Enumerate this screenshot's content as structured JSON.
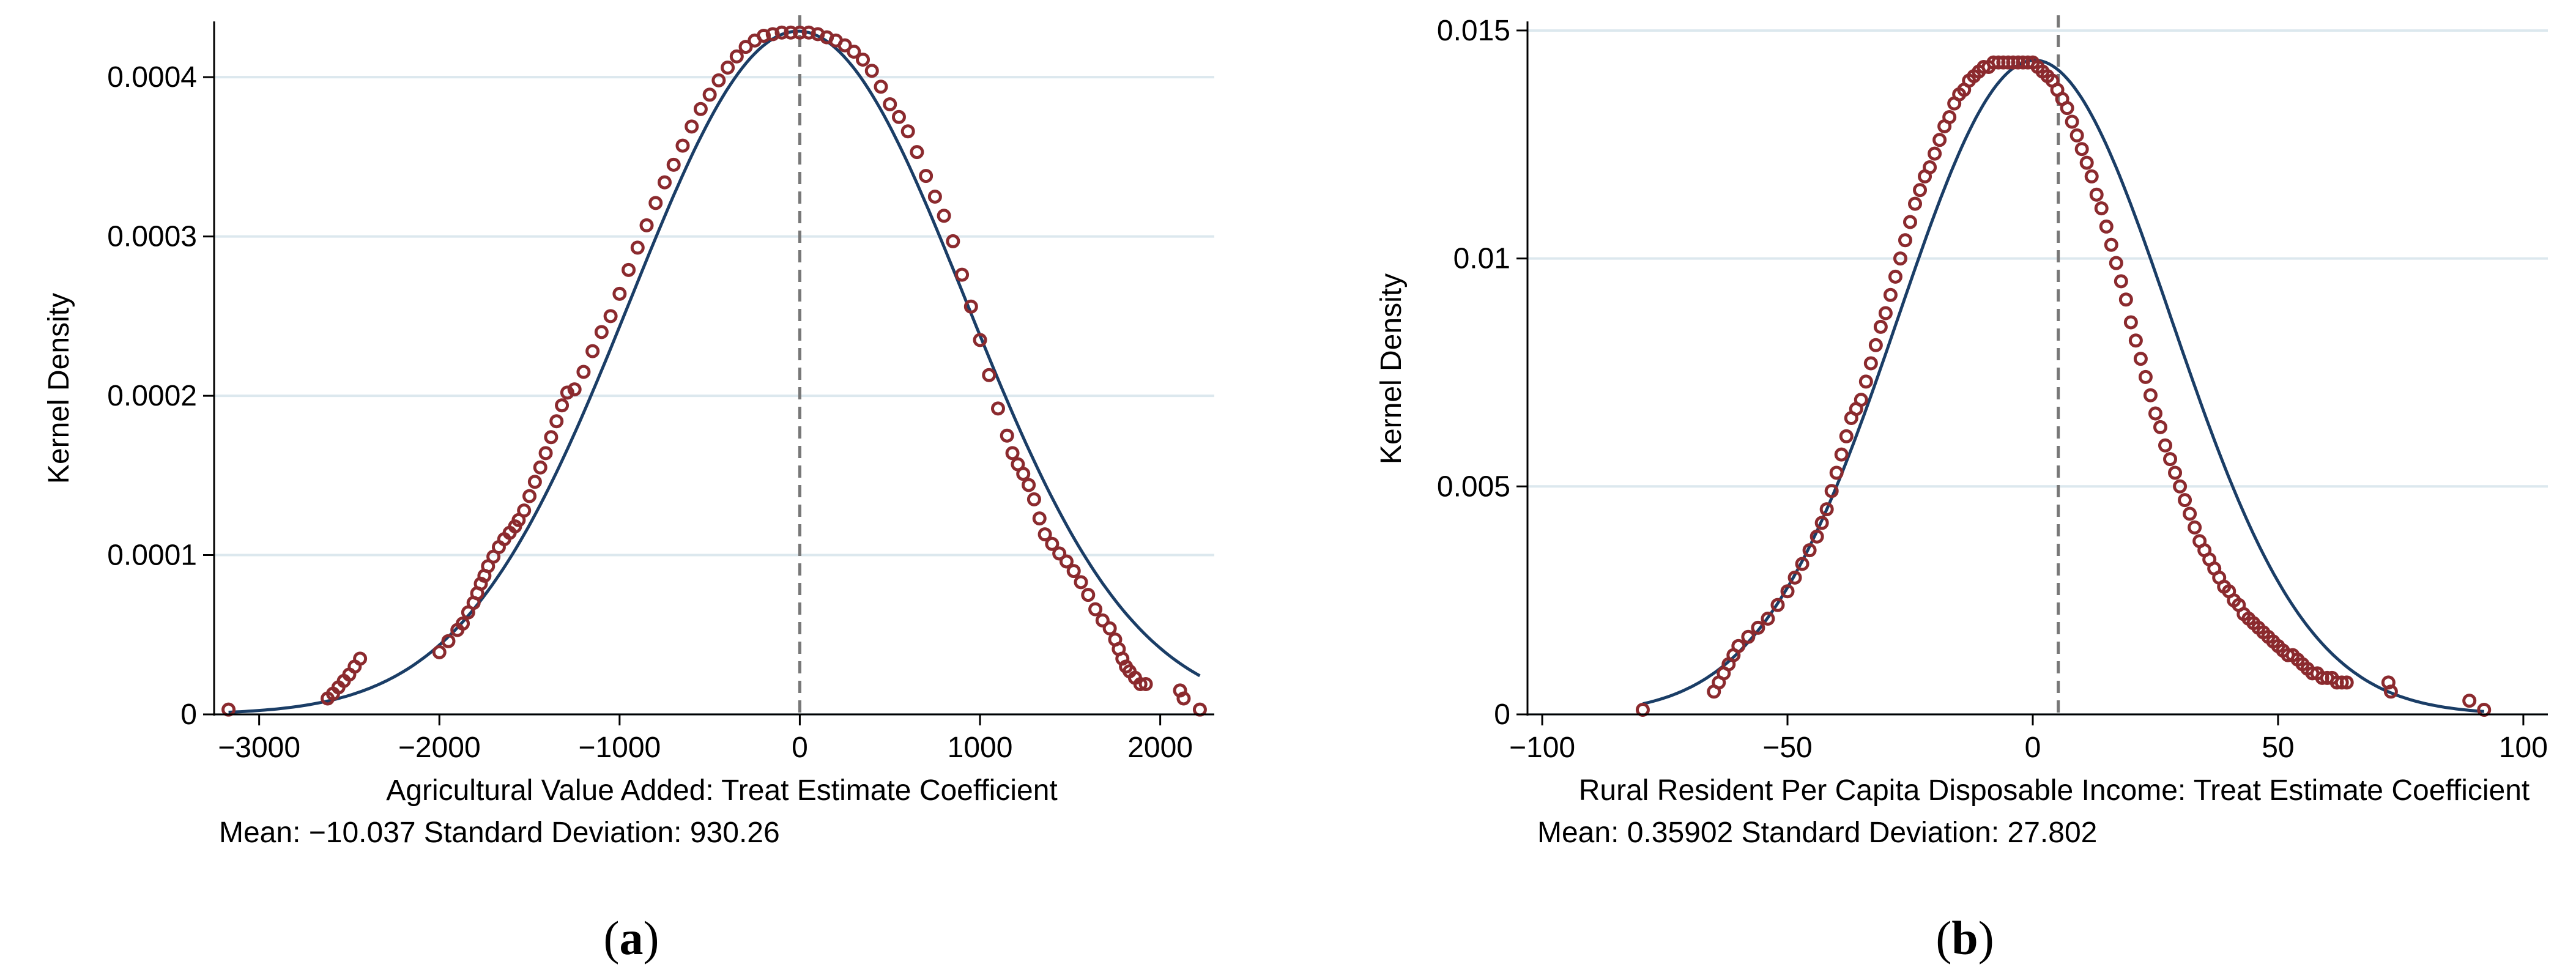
{
  "colors": {
    "kernel": "#8b2a2e",
    "normal": "#1a3d66",
    "grid": "#dce8ee",
    "mean_line": "#777777",
    "axis": "#000000"
  },
  "chart_data": [
    {
      "id": "a",
      "type": "scatter",
      "panel_label": {
        "open": "(",
        "letter": "a",
        "close": ")"
      },
      "xlabel": "Agricultural Value Added: Treat Estimate Coefficient",
      "ylabel": "Kernel Density",
      "stats_text": "Mean: −10.037 Standard Deviation: 930.26",
      "mean": -10.037,
      "sd": 930.26,
      "xlim": [
        -3250,
        2300
      ],
      "ylim": [
        0,
        0.000435
      ],
      "xticks": [
        -3000,
        -2000,
        -1000,
        0,
        1000,
        2000
      ],
      "xtick_labels": [
        "−3000",
        "−2000",
        "−1000",
        "0",
        "1000",
        "2000"
      ],
      "yticks": [
        0,
        0.0001,
        0.0002,
        0.0003,
        0.0004
      ],
      "ytick_labels": [
        "0",
        "0.0001",
        "0.0002",
        "0.0003",
        "0.0004"
      ],
      "vline_x": 0,
      "grid": true,
      "series": [
        {
          "name": "Kernel density",
          "style": "hollow-markers",
          "x": [
            -3170,
            -2620,
            -2590,
            -2560,
            -2530,
            -2500,
            -2470,
            -2440,
            -2000,
            -1950,
            -1900,
            -1870,
            -1840,
            -1810,
            -1790,
            -1770,
            -1750,
            -1730,
            -1700,
            -1670,
            -1640,
            -1610,
            -1580,
            -1560,
            -1530,
            -1500,
            -1470,
            -1440,
            -1410,
            -1380,
            -1350,
            -1320,
            -1290,
            -1250,
            -1200,
            -1150,
            -1100,
            -1050,
            -1000,
            -950,
            -900,
            -850,
            -800,
            -750,
            -700,
            -650,
            -600,
            -550,
            -500,
            -450,
            -400,
            -350,
            -300,
            -250,
            -200,
            -150,
            -100,
            -50,
            0,
            50,
            100,
            150,
            200,
            250,
            300,
            350,
            400,
            450,
            500,
            550,
            600,
            650,
            700,
            750,
            800,
            850,
            900,
            950,
            1000,
            1050,
            1100,
            1150,
            1180,
            1210,
            1240,
            1270,
            1300,
            1330,
            1360,
            1400,
            1440,
            1480,
            1520,
            1560,
            1600,
            1640,
            1680,
            1720,
            1750,
            1770,
            1790,
            1810,
            1830,
            1860,
            1890,
            1920,
            2110,
            2130,
            2220
          ],
          "y": [
            3e-06,
            1e-05,
            1.3e-05,
            1.7e-05,
            2.1e-05,
            2.5e-05,
            3e-05,
            3.5e-05,
            3.9e-05,
            4.6e-05,
            5.3e-05,
            5.7e-05,
            6.4e-05,
            7e-05,
            7.6e-05,
            8.2e-05,
            8.7e-05,
            9.3e-05,
            9.9e-05,
            0.000105,
            0.00011,
            0.000114,
            0.000118,
            0.000122,
            0.000128,
            0.000137,
            0.000146,
            0.000155,
            0.000164,
            0.000174,
            0.000184,
            0.000194,
            0.000202,
            0.000204,
            0.000215,
            0.000228,
            0.00024,
            0.00025,
            0.000264,
            0.000279,
            0.000293,
            0.000307,
            0.000321,
            0.000334,
            0.000345,
            0.000357,
            0.000369,
            0.00038,
            0.000389,
            0.000398,
            0.000406,
            0.000413,
            0.000419,
            0.000423,
            0.000426,
            0.000427,
            0.000428,
            0.000428,
            0.000428,
            0.000428,
            0.000427,
            0.000425,
            0.000423,
            0.00042,
            0.000416,
            0.000411,
            0.000404,
            0.000394,
            0.000383,
            0.000375,
            0.000366,
            0.000353,
            0.000338,
            0.000325,
            0.000313,
            0.000297,
            0.000276,
            0.000256,
            0.000235,
            0.000213,
            0.000192,
            0.000175,
            0.000164,
            0.000157,
            0.000151,
            0.000144,
            0.000135,
            0.000123,
            0.000113,
            0.000107,
            0.000101,
            9.6e-05,
            9e-05,
            8.3e-05,
            7.5e-05,
            6.6e-05,
            5.9e-05,
            5.4e-05,
            4.7e-05,
            4.1e-05,
            3.5e-05,
            3e-05,
            2.7e-05,
            2.3e-05,
            1.9e-05,
            1.9e-05,
            1.5e-05,
            1e-05,
            3e-06
          ]
        },
        {
          "name": "Normal density",
          "style": "line"
        }
      ]
    },
    {
      "id": "b",
      "type": "scatter",
      "panel_label": {
        "open": "(",
        "letter": "b",
        "close": ")"
      },
      "xlabel": "Rural Resident Per Capita Disposable Income: Treat Estimate Coefficient",
      "ylabel": "Kernel Density",
      "stats_text": "Mean: 0.35902 Standard Deviation: 27.802",
      "mean": 0.35902,
      "sd": 27.802,
      "xlim": [
        -103,
        105
      ],
      "ylim": [
        0,
        0.0152
      ],
      "xticks": [
        -100,
        -50,
        0,
        50,
        100
      ],
      "xtick_labels": [
        "−100",
        "−50",
        "0",
        "50",
        "100"
      ],
      "yticks": [
        0,
        0.005,
        0.01,
        0.015
      ],
      "ytick_labels": [
        "0",
        "0.005",
        "0.01",
        "0.015"
      ],
      "vline_x": 5.2,
      "grid": true,
      "series": [
        {
          "name": "Kernel density",
          "style": "hollow-markers",
          "x": [
            -79.5,
            -65,
            -64,
            -63,
            -62,
            -61,
            -60,
            -58,
            -56,
            -54,
            -52,
            -50,
            -48.5,
            -47,
            -45.5,
            -44,
            -43,
            -42,
            -41,
            -40,
            -39,
            -38,
            -37,
            -36,
            -35,
            -34,
            -33,
            -32,
            -31,
            -30,
            -29,
            -28,
            -27,
            -26,
            -25,
            -24,
            -23,
            -22,
            -21,
            -20,
            -19,
            -18,
            -17,
            -16,
            -15,
            -14,
            -13,
            -12,
            -11,
            -10,
            -9,
            -8,
            -7,
            -6,
            -5,
            -4,
            -3,
            -2,
            -1,
            0,
            1,
            2,
            3,
            4,
            5,
            6,
            7,
            8,
            9,
            10,
            11,
            12,
            13,
            14,
            15,
            16,
            17,
            18,
            19,
            20,
            21,
            22,
            23,
            24,
            25,
            26,
            27,
            28,
            29,
            30,
            31,
            32,
            33,
            34,
            35,
            36,
            37,
            38,
            39,
            40,
            41,
            42,
            43,
            44,
            45,
            46,
            47,
            48,
            49,
            50,
            51,
            52,
            53,
            54,
            55,
            56,
            57,
            58,
            59,
            60,
            61,
            62,
            63,
            64,
            72.5,
            73,
            89,
            92
          ],
          "y": [
            0.0001,
            0.0005,
            0.0007,
            0.0009,
            0.0011,
            0.0013,
            0.0015,
            0.0017,
            0.0019,
            0.0021,
            0.0024,
            0.0027,
            0.003,
            0.0033,
            0.0036,
            0.0039,
            0.0042,
            0.0045,
            0.0049,
            0.0053,
            0.0057,
            0.0061,
            0.0065,
            0.0067,
            0.0069,
            0.0073,
            0.0077,
            0.0081,
            0.0085,
            0.0088,
            0.0092,
            0.0096,
            0.01,
            0.0104,
            0.0108,
            0.0112,
            0.0115,
            0.0118,
            0.012,
            0.0123,
            0.0126,
            0.0129,
            0.0131,
            0.0134,
            0.0136,
            0.0137,
            0.0139,
            0.014,
            0.0141,
            0.0142,
            0.0142,
            0.0143,
            0.0143,
            0.0143,
            0.0143,
            0.0143,
            0.0143,
            0.0143,
            0.0143,
            0.0143,
            0.0142,
            0.0141,
            0.014,
            0.0139,
            0.0137,
            0.0135,
            0.0133,
            0.013,
            0.0127,
            0.0124,
            0.0121,
            0.0118,
            0.0114,
            0.0111,
            0.0107,
            0.0103,
            0.0099,
            0.0095,
            0.0091,
            0.0086,
            0.0082,
            0.0078,
            0.0074,
            0.007,
            0.0066,
            0.0063,
            0.0059,
            0.0056,
            0.0053,
            0.005,
            0.0047,
            0.0044,
            0.0041,
            0.0038,
            0.0036,
            0.0034,
            0.0032,
            0.003,
            0.0028,
            0.0027,
            0.0025,
            0.0024,
            0.0022,
            0.0021,
            0.002,
            0.0019,
            0.0018,
            0.0017,
            0.0016,
            0.0015,
            0.0014,
            0.0013,
            0.0013,
            0.0012,
            0.0011,
            0.001,
            0.0009,
            0.0009,
            0.0008,
            0.0008,
            0.0008,
            0.0007,
            0.0007,
            0.0007,
            0.0007,
            0.0005,
            0.0003,
            0.0001
          ]
        },
        {
          "name": "Normal density",
          "style": "line"
        }
      ]
    }
  ]
}
